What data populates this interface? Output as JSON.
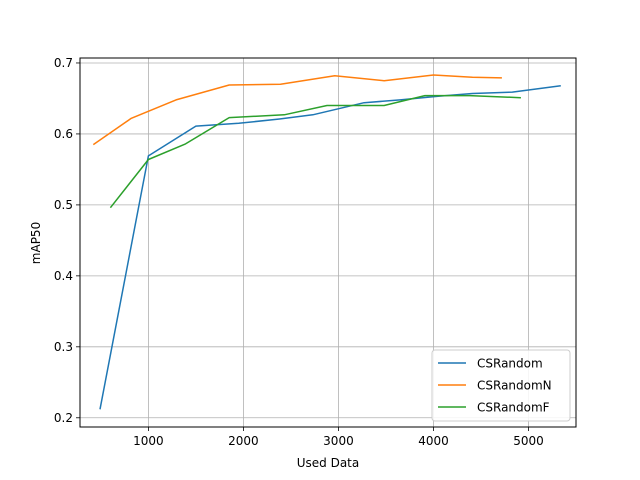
{
  "chart_data": {
    "type": "line",
    "title": "",
    "xlabel": "Used Data",
    "ylabel": "mAP50",
    "xlim": [
      280,
      5500
    ],
    "ylim": [
      0.187,
      0.707
    ],
    "xticks": [
      1000,
      2000,
      3000,
      4000,
      5000
    ],
    "yticks": [
      0.2,
      0.3,
      0.4,
      0.5,
      0.6,
      0.7
    ],
    "xtick_labels": [
      "1000",
      "2000",
      "3000",
      "4000",
      "5000"
    ],
    "ytick_labels": [
      "0.2",
      "0.3",
      "0.4",
      "0.5",
      "0.6",
      "0.7"
    ],
    "grid": true,
    "legend_position": "lower-right",
    "series": [
      {
        "name": "CSRandom",
        "color": "#1f77b4",
        "x": [
          490,
          1000,
          1500,
          1950,
          2380,
          2730,
          3270,
          3650,
          4050,
          4410,
          4830,
          5340
        ],
        "y": [
          0.212,
          0.569,
          0.611,
          0.615,
          0.621,
          0.627,
          0.644,
          0.648,
          0.653,
          0.657,
          0.659,
          0.668
        ]
      },
      {
        "name": "CSRandomN",
        "color": "#ff7f0e",
        "x": [
          420,
          820,
          1290,
          1850,
          2390,
          2960,
          3480,
          4000,
          4410,
          4720
        ],
        "y": [
          0.585,
          0.622,
          0.648,
          0.669,
          0.67,
          0.682,
          0.675,
          0.683,
          0.68,
          0.679
        ]
      },
      {
        "name": "CSRandomF",
        "color": "#2ca02c",
        "x": [
          600,
          1000,
          1390,
          1850,
          2430,
          2880,
          3480,
          3910,
          4380,
          4920
        ],
        "y": [
          0.496,
          0.564,
          0.586,
          0.623,
          0.627,
          0.64,
          0.64,
          0.654,
          0.654,
          0.651
        ]
      }
    ]
  }
}
